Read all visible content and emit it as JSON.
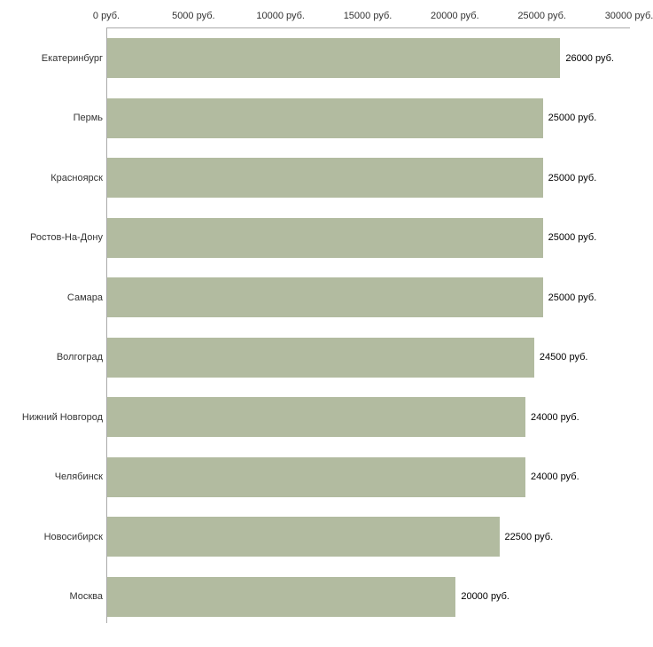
{
  "chart_data": {
    "type": "bar",
    "orientation": "horizontal",
    "title": "",
    "categories": [
      "Екатеринбург",
      "Пермь",
      "Красноярск",
      "Ростов-На-Дону",
      "Самара",
      "Волгоград",
      "Нижний Новгород",
      "Челябинск",
      "Новосибирск",
      "Москва"
    ],
    "values": [
      26000,
      25000,
      25000,
      25000,
      25000,
      24500,
      24000,
      24000,
      22500,
      20000
    ],
    "value_labels": [
      "26000 руб.",
      "25000 руб.",
      "25000 руб.",
      "25000 руб.",
      "25000 руб.",
      "24500 руб.",
      "24000 руб.",
      "24000 руб.",
      "22500 руб.",
      "20000 руб."
    ],
    "x_ticks": [
      0,
      5000,
      10000,
      15000,
      20000,
      25000,
      30000
    ],
    "x_tick_labels": [
      "0 руб.",
      "5000 руб.",
      "10000 руб.",
      "15000 руб.",
      "20000 руб.",
      "25000 руб.",
      "30000 руб."
    ],
    "xlim": [
      0,
      30000
    ],
    "unit": "руб.",
    "ylabel": "",
    "xlabel": "",
    "grid": "off",
    "legend": "none",
    "colors": {
      "bar": "#b2bba0",
      "axis": "#aaaaaa",
      "tick_text": "#333333",
      "value_text": "#000000",
      "background": "#ffffff"
    }
  }
}
